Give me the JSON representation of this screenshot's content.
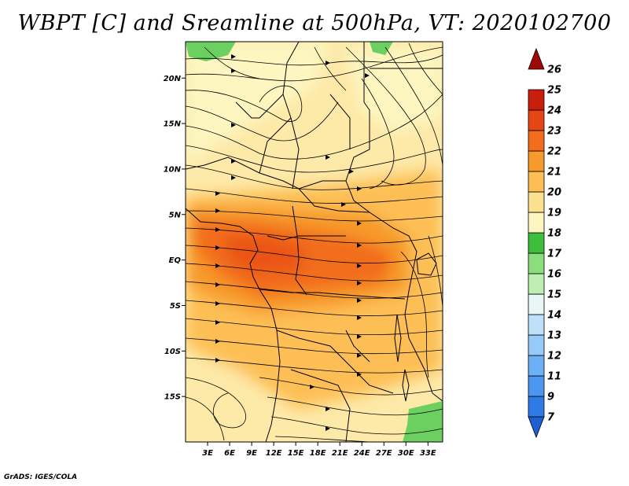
{
  "title": "WBPT [C] and Sreamline at 500hPa, VT: 2020102700",
  "credit": "GrADS: IGES/COLA",
  "map": {
    "lon_range": [
      0,
      35
    ],
    "lat_range": [
      -20,
      24
    ],
    "x_ticks": [
      {
        "value": 3,
        "label": "3E"
      },
      {
        "value": 6,
        "label": "6E"
      },
      {
        "value": 9,
        "label": "9E"
      },
      {
        "value": 12,
        "label": "12E"
      },
      {
        "value": 15,
        "label": "15E"
      },
      {
        "value": 18,
        "label": "18E"
      },
      {
        "value": 21,
        "label": "21E"
      },
      {
        "value": 24,
        "label": "24E"
      },
      {
        "value": 27,
        "label": "27E"
      },
      {
        "value": 30,
        "label": "30E"
      },
      {
        "value": 33,
        "label": "33E"
      }
    ],
    "y_ticks": [
      {
        "value": 20,
        "label": "20N"
      },
      {
        "value": 15,
        "label": "15N"
      },
      {
        "value": 10,
        "label": "10N"
      },
      {
        "value": 5,
        "label": "5N"
      },
      {
        "value": 0,
        "label": "EQ"
      },
      {
        "value": -5,
        "label": "5S"
      },
      {
        "value": -10,
        "label": "10S"
      },
      {
        "value": -15,
        "label": "15S"
      }
    ]
  },
  "colorbar": {
    "levels": [
      {
        "label": "7",
        "color": "#1f5fd6"
      },
      {
        "label": "9",
        "color": "#2f7be6"
      },
      {
        "label": "11",
        "color": "#4b96ef"
      },
      {
        "label": "12",
        "color": "#6cb0f5"
      },
      {
        "label": "13",
        "color": "#96caf9"
      },
      {
        "label": "14",
        "color": "#bfe0fb"
      },
      {
        "label": "15",
        "color": "#e8f7f5"
      },
      {
        "label": "16",
        "color": "#bfeeb4"
      },
      {
        "label": "17",
        "color": "#8bdd7e"
      },
      {
        "label": "18",
        "color": "#3ebf3c"
      },
      {
        "label": "19",
        "color": "#fdf6c0"
      },
      {
        "label": "20",
        "color": "#fde08f"
      },
      {
        "label": "21",
        "color": "#fdbf55"
      },
      {
        "label": "22",
        "color": "#f79a2c"
      },
      {
        "label": "23",
        "color": "#f26d1c"
      },
      {
        "label": "24",
        "color": "#e64514"
      },
      {
        "label": "25",
        "color": "#c81e0e"
      },
      {
        "label": "26",
        "color": "#a00808"
      }
    ]
  }
}
